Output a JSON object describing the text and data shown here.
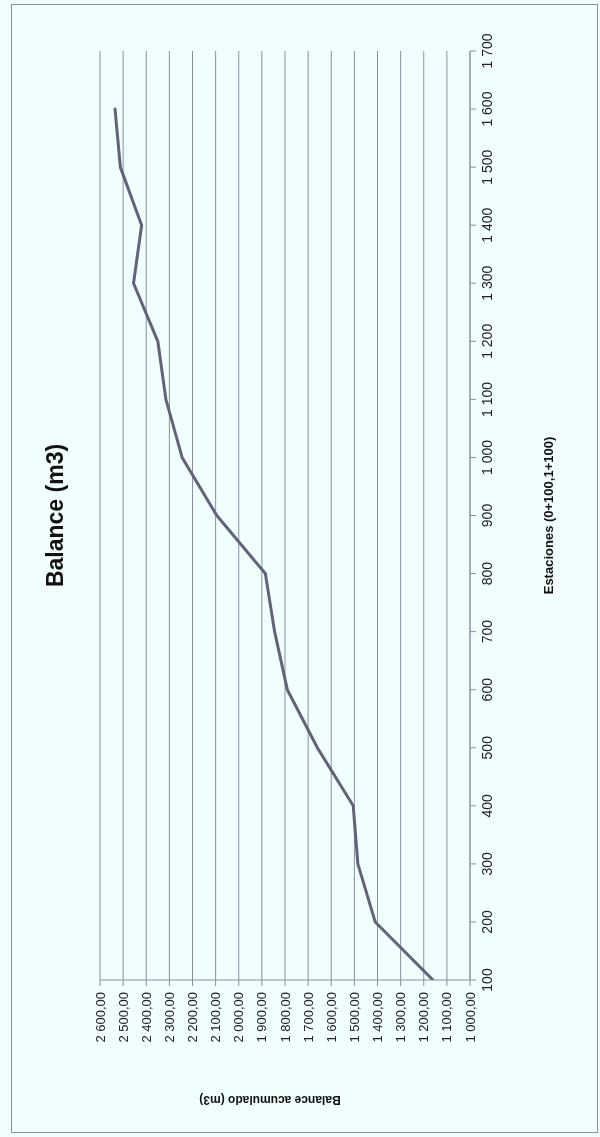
{
  "chart_data": {
    "type": "line",
    "title": "Balance (m3)",
    "xlabel": "Balance acumulado (m3)",
    "ylabel": "Estaciones (0+100,1+100)",
    "x": [
      1160,
      1410,
      1485,
      1505,
      1660,
      1790,
      1845,
      1885,
      2095,
      2245,
      2315,
      2350,
      2455,
      2420,
      2512,
      2535
    ],
    "series": [
      {
        "color": "#62627a",
        "values": [
          100,
          200,
          300,
          400,
          500,
          600,
          700,
          800,
          900,
          1000,
          1100,
          1200,
          1300,
          1400,
          1500,
          1600
        ]
      }
    ],
    "xlim": [
      2600,
      1000
    ],
    "xticks": [
      {
        "value": 2600,
        "label": "2 600,00"
      },
      {
        "value": 2500,
        "label": "2 500,00"
      },
      {
        "value": 2400,
        "label": "2 400,00"
      },
      {
        "value": 2300,
        "label": "2 300,00"
      },
      {
        "value": 2200,
        "label": "2 200,00"
      },
      {
        "value": 2100,
        "label": "2 100,00"
      },
      {
        "value": 2000,
        "label": "2 000,00"
      },
      {
        "value": 1900,
        "label": "1 900,00"
      },
      {
        "value": 1800,
        "label": "1 800,00"
      },
      {
        "value": 1700,
        "label": "1 700,00"
      },
      {
        "value": 1600,
        "label": "1 600,00"
      },
      {
        "value": 1500,
        "label": "1 500,00"
      },
      {
        "value": 1400,
        "label": "1 400,00"
      },
      {
        "value": 1300,
        "label": "1 300,00"
      },
      {
        "value": 1200,
        "label": "1 200,00"
      },
      {
        "value": 1100,
        "label": "1 100,00"
      },
      {
        "value": 1000,
        "label": "1 000,00"
      }
    ],
    "ylim": [
      100,
      1700
    ],
    "yticks": [
      100,
      200,
      300,
      400,
      500,
      600,
      700,
      800,
      900,
      {
        "value": 1000,
        "label": "1 000"
      },
      {
        "value": 1100,
        "label": "1 100"
      },
      {
        "value": 1200,
        "label": "1 200"
      },
      {
        "value": 1300,
        "label": "1 300"
      },
      {
        "value": 1400,
        "label": "1 400"
      },
      {
        "value": 1500,
        "label": "1 500"
      },
      {
        "value": 1600,
        "label": "1 600"
      },
      {
        "value": 1700,
        "label": "1 700"
      }
    ],
    "grid": "x",
    "marker": "none",
    "line_style": "solid"
  }
}
